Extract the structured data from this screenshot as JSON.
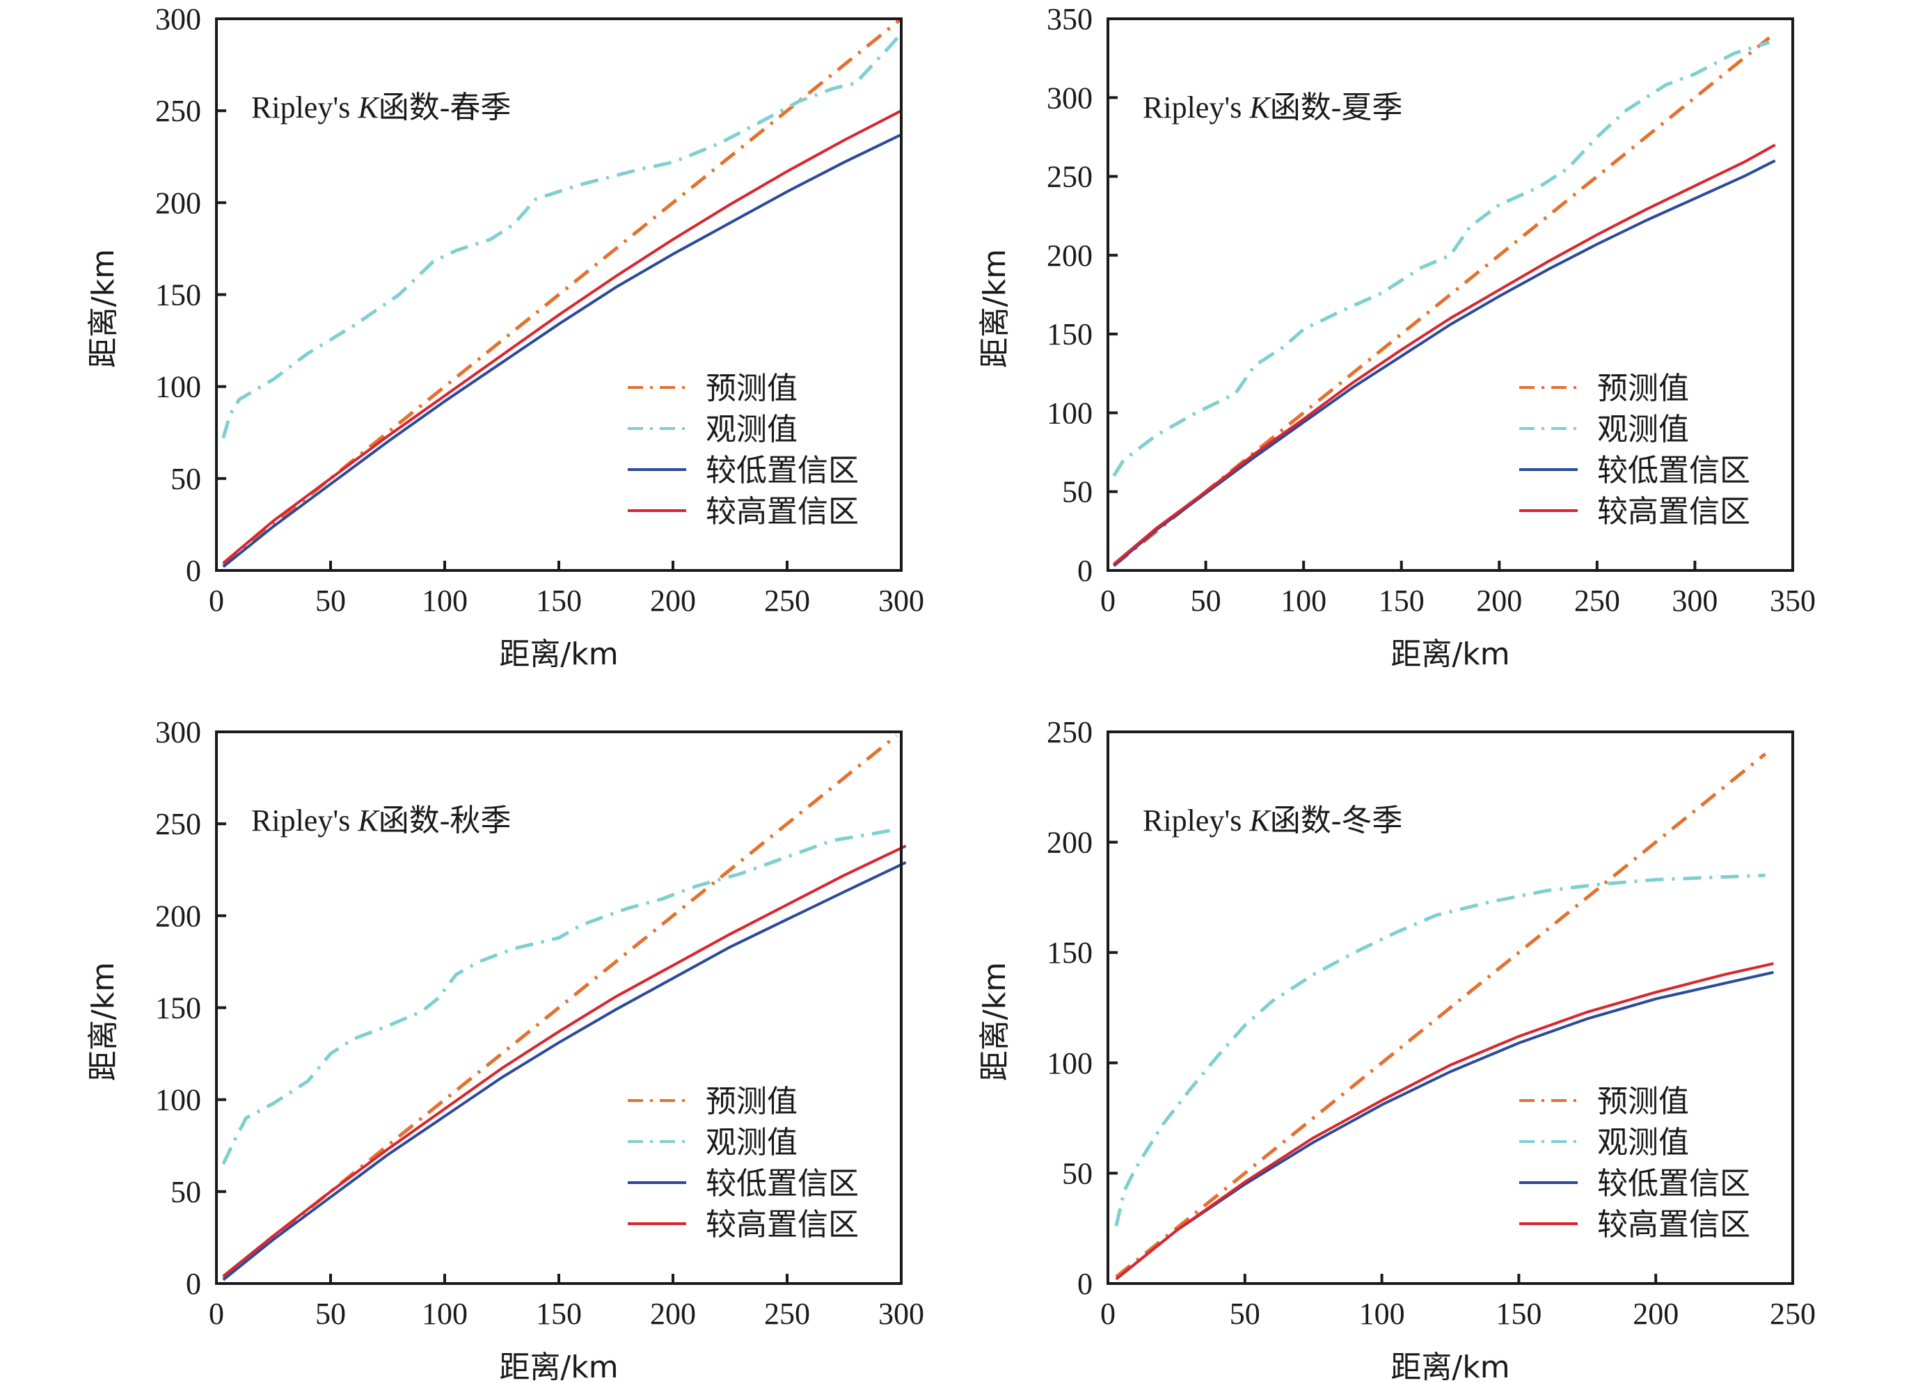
{
  "colors": {
    "predicted": "#E3712F",
    "observed": "#7ED0D0",
    "lower": "#2C4A9C",
    "upper": "#D9262E",
    "axis": "#1a1a1a"
  },
  "chart_data": [
    {
      "type": "line",
      "panel": "top-left",
      "title": "Ripley's K函数-春季",
      "title_prefix": "Ripley's ",
      "title_italic": "K",
      "title_suffix": "函数-春季",
      "xlabel": "距离/km",
      "ylabel": "距离/km",
      "xlim": [
        0,
        300
      ],
      "ylim": [
        0,
        300
      ],
      "xticks": [
        0,
        50,
        100,
        150,
        200,
        250,
        300
      ],
      "yticks": [
        0,
        50,
        100,
        150,
        200,
        250,
        300
      ],
      "grid": false,
      "legend_position": "lower-right",
      "series": [
        {
          "name": "预测值",
          "key": "predicted",
          "style": "dashdot",
          "x": [
            3,
            50,
            100,
            150,
            200,
            250,
            300
          ],
          "y": [
            3,
            50,
            100,
            150,
            200,
            250,
            300
          ]
        },
        {
          "name": "观测值",
          "key": "observed",
          "style": "dashdot",
          "x": [
            3,
            6,
            10,
            25,
            40,
            60,
            80,
            95,
            105,
            120,
            130,
            140,
            160,
            185,
            200,
            220,
            240,
            255,
            270,
            280,
            295,
            300
          ],
          "y": [
            72,
            85,
            93,
            104,
            118,
            133,
            150,
            168,
            174,
            180,
            188,
            202,
            210,
            218,
            222,
            232,
            245,
            255,
            262,
            265,
            285,
            292
          ]
        },
        {
          "name": "较低置信区",
          "key": "lower",
          "style": "solid",
          "x": [
            3,
            25,
            50,
            75,
            100,
            125,
            150,
            175,
            200,
            225,
            250,
            275,
            300
          ],
          "y": [
            2,
            24,
            47,
            70,
            92,
            113,
            134,
            154,
            172,
            189,
            206,
            222,
            237
          ]
        },
        {
          "name": "较高置信区",
          "key": "upper",
          "style": "solid",
          "x": [
            3,
            25,
            50,
            75,
            100,
            125,
            150,
            175,
            200,
            225,
            250,
            275,
            300
          ],
          "y": [
            4,
            27,
            50,
            73,
            95,
            117,
            139,
            160,
            180,
            199,
            217,
            234,
            250
          ]
        }
      ]
    },
    {
      "type": "line",
      "panel": "top-right",
      "title": "Ripley's K函数-夏季",
      "title_prefix": "Ripley's ",
      "title_italic": "K",
      "title_suffix": "函数-夏季",
      "xlabel": "距离/km",
      "ylabel": "距离/km",
      "xlim": [
        0,
        350
      ],
      "ylim": [
        0,
        350
      ],
      "xticks": [
        0,
        50,
        100,
        150,
        200,
        250,
        300,
        350
      ],
      "yticks": [
        0,
        50,
        100,
        150,
        200,
        250,
        300,
        350
      ],
      "grid": false,
      "legend_position": "lower-right",
      "series": [
        {
          "name": "预测值",
          "key": "predicted",
          "style": "dashdot",
          "x": [
            3,
            50,
            100,
            150,
            200,
            250,
            300,
            338
          ],
          "y": [
            3,
            50,
            100,
            150,
            200,
            250,
            300,
            338
          ]
        },
        {
          "name": "观测值",
          "key": "observed",
          "style": "dashdot",
          "x": [
            3,
            8,
            25,
            45,
            65,
            75,
            90,
            100,
            120,
            140,
            160,
            175,
            185,
            200,
            220,
            235,
            250,
            265,
            285,
            300,
            320,
            338
          ],
          "y": [
            60,
            70,
            86,
            100,
            112,
            130,
            142,
            153,
            165,
            176,
            192,
            200,
            218,
            232,
            243,
            255,
            275,
            292,
            308,
            315,
            328,
            335
          ]
        },
        {
          "name": "较低置信区",
          "key": "lower",
          "style": "solid",
          "x": [
            3,
            25,
            50,
            75,
            100,
            125,
            150,
            175,
            200,
            225,
            250,
            275,
            300,
            325,
            341
          ],
          "y": [
            3,
            26,
            49,
            72,
            94,
            116,
            136,
            156,
            174,
            191,
            207,
            222,
            236,
            250,
            260
          ]
        },
        {
          "name": "较高置信区",
          "key": "upper",
          "style": "solid",
          "x": [
            3,
            25,
            50,
            75,
            100,
            125,
            150,
            175,
            200,
            225,
            250,
            275,
            300,
            325,
            341
          ],
          "y": [
            4,
            27,
            50,
            74,
            96,
            119,
            140,
            160,
            178,
            196,
            213,
            229,
            244,
            259,
            270
          ]
        }
      ]
    },
    {
      "type": "line",
      "panel": "bottom-left",
      "title": "Ripley's K函数-秋季",
      "title_prefix": "Ripley's ",
      "title_italic": "K",
      "title_suffix": "函数-秋季",
      "xlabel": "距离/km",
      "ylabel": "距离/km",
      "xlim": [
        0,
        300
      ],
      "ylim": [
        0,
        300
      ],
      "xticks": [
        0,
        50,
        100,
        150,
        200,
        250,
        300
      ],
      "yticks": [
        0,
        50,
        100,
        150,
        200,
        250,
        300
      ],
      "grid": false,
      "legend_position": "lower-right",
      "series": [
        {
          "name": "预测值",
          "key": "predicted",
          "style": "dashdot",
          "x": [
            3,
            50,
            100,
            150,
            200,
            250,
            298
          ],
          "y": [
            3,
            50,
            100,
            150,
            200,
            250,
            298
          ]
        },
        {
          "name": "观测值",
          "key": "observed",
          "style": "dashdot",
          "x": [
            3,
            8,
            13,
            25,
            40,
            50,
            60,
            75,
            90,
            97,
            105,
            115,
            130,
            150,
            160,
            180,
            195,
            210,
            230,
            250,
            270,
            285,
            298
          ],
          "y": [
            65,
            78,
            90,
            98,
            110,
            125,
            133,
            140,
            148,
            155,
            168,
            175,
            182,
            188,
            195,
            204,
            209,
            216,
            223,
            232,
            241,
            244,
            247
          ]
        },
        {
          "name": "较低置信区",
          "key": "lower",
          "style": "solid",
          "x": [
            3,
            25,
            50,
            75,
            100,
            125,
            150,
            175,
            200,
            225,
            250,
            275,
            302
          ],
          "y": [
            2,
            24,
            47,
            70,
            91,
            112,
            131,
            149,
            166,
            183,
            198,
            213,
            229
          ]
        },
        {
          "name": "较高置信区",
          "key": "upper",
          "style": "solid",
          "x": [
            3,
            25,
            50,
            75,
            100,
            125,
            150,
            175,
            200,
            225,
            250,
            275,
            302
          ],
          "y": [
            4,
            26,
            50,
            73,
            95,
            117,
            137,
            156,
            173,
            190,
            206,
            222,
            238
          ]
        }
      ]
    },
    {
      "type": "line",
      "panel": "bottom-right",
      "title": "Ripley's K函数-冬季",
      "title_prefix": "Ripley's ",
      "title_italic": "K",
      "title_suffix": "函数-冬季",
      "xlabel": "距离/km",
      "ylabel": "距离/km",
      "xlim": [
        0,
        250
      ],
      "ylim": [
        0,
        250
      ],
      "xticks": [
        0,
        50,
        100,
        150,
        200,
        250
      ],
      "yticks": [
        0,
        50,
        100,
        150,
        200,
        250
      ],
      "grid": false,
      "legend_position": "lower-right",
      "series": [
        {
          "name": "预测值",
          "key": "predicted",
          "style": "dashdot",
          "x": [
            3,
            50,
            100,
            150,
            200,
            240
          ],
          "y": [
            3,
            50,
            100,
            150,
            200,
            240
          ]
        },
        {
          "name": "观测值",
          "key": "observed",
          "style": "dashdot",
          "x": [
            3,
            6,
            10,
            15,
            20,
            30,
            40,
            50,
            60,
            75,
            90,
            105,
            120,
            140,
            160,
            180,
            200,
            220,
            240
          ],
          "y": [
            26,
            42,
            52,
            62,
            72,
            88,
            103,
            117,
            128,
            140,
            150,
            159,
            167,
            173,
            178,
            181,
            183,
            184,
            185
          ]
        },
        {
          "name": "较低置信区",
          "key": "lower",
          "style": "solid",
          "x": [
            3,
            25,
            50,
            75,
            100,
            125,
            150,
            175,
            200,
            225,
            243
          ],
          "y": [
            2,
            24,
            45,
            64,
            81,
            96,
            109,
            120,
            129,
            136,
            141
          ]
        },
        {
          "name": "较高置信区",
          "key": "upper",
          "style": "solid",
          "x": [
            3,
            25,
            50,
            75,
            100,
            125,
            150,
            175,
            200,
            225,
            243
          ],
          "y": [
            2,
            24,
            46,
            66,
            83,
            99,
            112,
            123,
            132,
            140,
            145
          ]
        }
      ]
    }
  ]
}
